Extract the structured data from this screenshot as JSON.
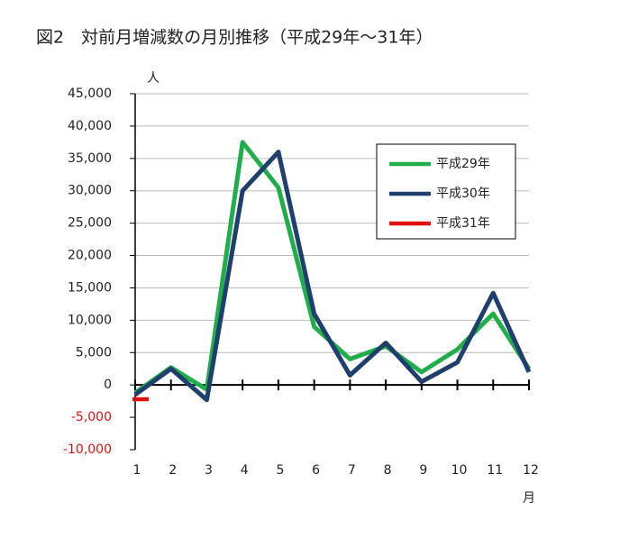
{
  "chart_data": {
    "type": "line",
    "title": "図2　対前月増減数の月別推移（平成29年～31年）",
    "y_label": "人",
    "x_label": "月",
    "categories": [
      "1",
      "2",
      "3",
      "4",
      "5",
      "6",
      "7",
      "8",
      "9",
      "10",
      "11",
      "12"
    ],
    "series": [
      {
        "name": "平成29年",
        "color": "#1fae4a",
        "values": [
          -1200,
          2700,
          -700,
          37500,
          30500,
          9000,
          4000,
          6000,
          2000,
          5500,
          11000,
          2500
        ]
      },
      {
        "name": "平成30年",
        "color": "#1f3f6e",
        "values": [
          -1500,
          2500,
          -2300,
          30000,
          36000,
          11000,
          1500,
          6500,
          500,
          3500,
          14200,
          2000
        ]
      },
      {
        "name": "平成31年",
        "color": "#e01010",
        "values": [
          -2200,
          null,
          null,
          null,
          null,
          null,
          null,
          null,
          null,
          null,
          null,
          null
        ]
      }
    ],
    "ylim": [
      -10000,
      45000
    ],
    "yticks": [
      {
        "value": -10000,
        "label": "-10,000"
      },
      {
        "value": -5000,
        "label": "-5,000"
      },
      0,
      {
        "value": 5000,
        "label": "5,000"
      },
      {
        "value": 10000,
        "label": "10,000"
      },
      {
        "value": 15000,
        "label": "15,000"
      },
      {
        "value": 20000,
        "label": "20,000"
      },
      {
        "value": 25000,
        "label": "25,000"
      },
      {
        "value": 30000,
        "label": "30,000"
      },
      {
        "value": 35000,
        "label": "35,000"
      },
      {
        "value": 40000,
        "label": "40,000"
      },
      {
        "value": 45000,
        "label": "45,000"
      }
    ],
    "grid": true,
    "legend": "upper right"
  }
}
